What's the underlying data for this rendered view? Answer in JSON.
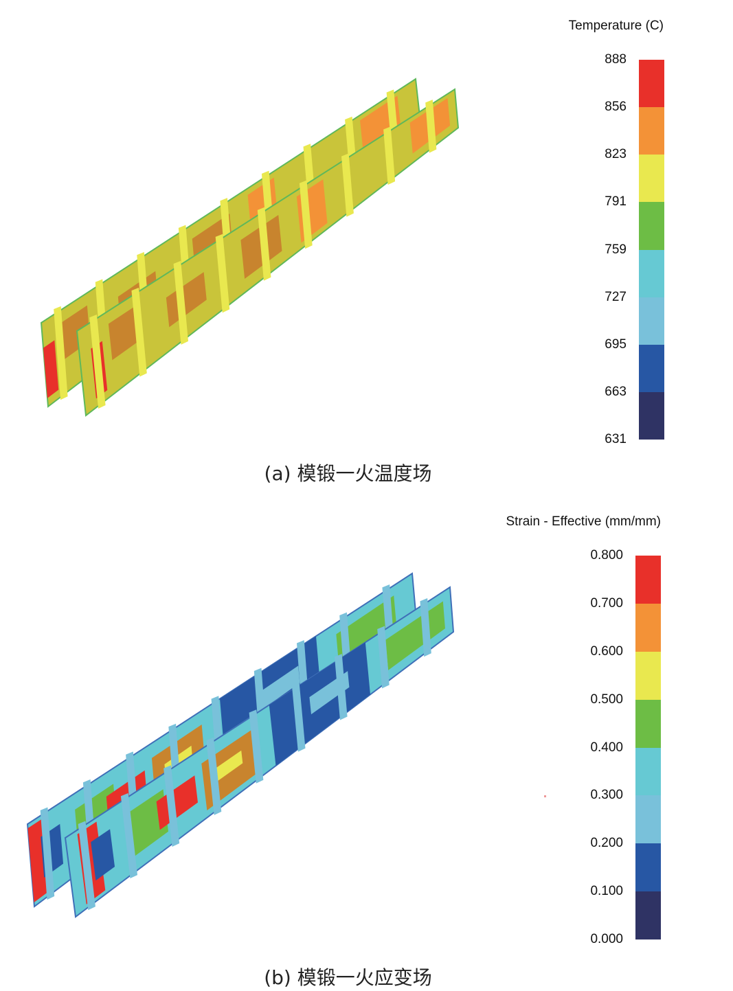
{
  "panel_a": {
    "caption": "(a) 模锻一火温度场",
    "legend_title": "Temperature (C)",
    "ticks": [
      "888",
      "856",
      "823",
      "791",
      "759",
      "727",
      "695",
      "663",
      "631"
    ],
    "colors": [
      "#e8302a",
      "#f39237",
      "#e9e84f",
      "#6dbd45",
      "#66c9d3",
      "#79c1da",
      "#2757a4",
      "#2f3364"
    ]
  },
  "panel_b": {
    "caption": "(b) 模锻一火应变场",
    "legend_title": "Strain - Effective (mm/mm)",
    "ticks": [
      "0.800",
      "0.700",
      "0.600",
      "0.500",
      "0.400",
      "0.300",
      "0.200",
      "0.100",
      "0.000"
    ],
    "colors": [
      "#e8302a",
      "#f39237",
      "#e9e84f",
      "#6dbd45",
      "#66c9d3",
      "#79c1da",
      "#2757a4",
      "#2f3364"
    ]
  }
}
